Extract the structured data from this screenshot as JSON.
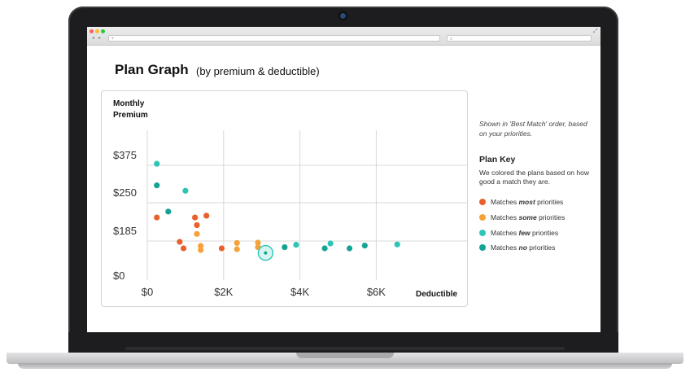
{
  "browser": {
    "nav_back": "◂",
    "nav_forward": "▸",
    "url_placeholder": "+",
    "search_placeholder": "",
    "traffic_colors": [
      "#ff5f57",
      "#febc2e",
      "#28c840"
    ]
  },
  "page": {
    "title": "Plan Graph",
    "subtitle": "(by premium & deductible)"
  },
  "side": {
    "note": "Shown in 'Best Match' order, based on your priorities.",
    "key_title": "Plan Key",
    "key_desc": "We colored the plans based on how good a match they are.",
    "items": [
      {
        "pre": "Matches ",
        "em": "most",
        "post": " priorities",
        "color": "#e8602c"
      },
      {
        "pre": "Matches ",
        "em": "some",
        "post": " priorities",
        "color": "#f5a23a"
      },
      {
        "pre": "Matches ",
        "em": "few",
        "post": " priorities",
        "color": "#2ec4b6"
      },
      {
        "pre": "Matches ",
        "em": "no",
        "post": " priorities",
        "color": "#16a394"
      }
    ]
  },
  "colors": {
    "most": "#e8602c",
    "some": "#f5a23a",
    "few": "#2ec4b6",
    "no": "#16a394",
    "grid": "#d9d9d9"
  },
  "chart_data": {
    "type": "scatter",
    "ylabel_line1": "Monthly",
    "ylabel_line2": "Premium",
    "xlabel": "Deductible",
    "x_ticks": [
      "$0",
      "$2K",
      "$4K",
      "$6K"
    ],
    "x_tick_values": [
      0,
      2000,
      4000,
      6000
    ],
    "y_ticks": [
      "$375",
      "$250",
      "$185",
      "$0"
    ],
    "y_tick_values": [
      375,
      250,
      185,
      0
    ],
    "grid": true,
    "series": [
      {
        "name": "Matches most priorities",
        "category": "most",
        "points": [
          [
            250,
            225
          ],
          [
            850,
            180
          ],
          [
            950,
            140
          ],
          [
            1250,
            225
          ],
          [
            1300,
            212
          ],
          [
            1550,
            228
          ],
          [
            1950,
            140
          ]
        ]
      },
      {
        "name": "Matches some priorities",
        "category": "some",
        "points": [
          [
            1300,
            197
          ],
          [
            1400,
            155
          ],
          [
            1400,
            130
          ],
          [
            2350,
            173
          ],
          [
            2350,
            135
          ],
          [
            2900,
            175
          ],
          [
            2900,
            147
          ]
        ]
      },
      {
        "name": "Matches few priorities",
        "category": "few",
        "points": [
          [
            250,
            380
          ],
          [
            1000,
            290
          ],
          [
            3100,
            112
          ],
          [
            3900,
            162
          ],
          [
            4800,
            170
          ],
          [
            6550,
            164
          ]
        ]
      },
      {
        "name": "Matches no priorities",
        "category": "no",
        "points": [
          [
            250,
            308
          ],
          [
            550,
            235
          ],
          [
            3600,
            147
          ],
          [
            4650,
            140
          ],
          [
            5300,
            140
          ],
          [
            5700,
            157
          ]
        ]
      }
    ],
    "highlighted": {
      "series": "few",
      "point": [
        3100,
        112
      ]
    }
  }
}
